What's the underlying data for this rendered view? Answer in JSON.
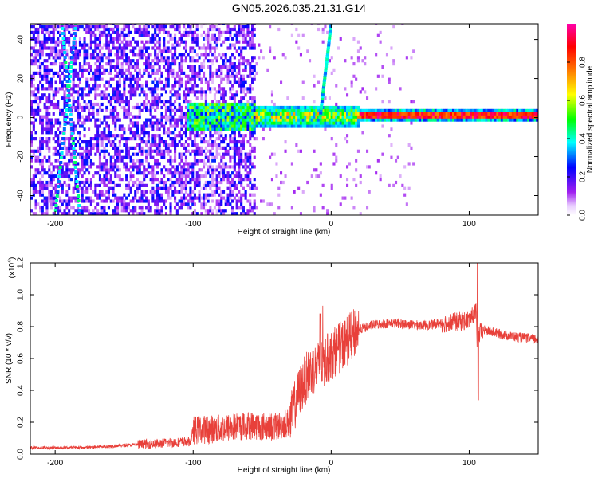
{
  "title": "GN05.2026.035.21.31.G14",
  "chart_data": [
    {
      "type": "heatmap",
      "xlabel": "Height of straight line (km)",
      "ylabel": "Frequency (Hz)",
      "xlim": [
        -218,
        150
      ],
      "ylim": [
        -50,
        48
      ],
      "x_ticks": [
        -200,
        -100,
        0,
        100
      ],
      "x_tick_labels": [
        "-200",
        "-100",
        "0",
        "100"
      ],
      "y_ticks": [
        -40,
        -20,
        0,
        20,
        40
      ],
      "y_tick_labels": [
        "-40",
        "-20",
        "0",
        "20",
        "40"
      ],
      "colorbar": {
        "label": "Normalized spectral amplitude",
        "range": [
          0,
          1
        ],
        "ticks": [
          0.0,
          0.2,
          0.4,
          0.6,
          0.8
        ],
        "tick_labels": [
          "0.0",
          "0.2",
          "0.4",
          "0.6",
          "0.8"
        ],
        "colors": [
          "#ffffff",
          "#a020f0",
          "#0000ff",
          "#00ffff",
          "#00ff00",
          "#ffff00",
          "#ff8000",
          "#ff0000",
          "#ff00ff"
        ]
      },
      "features": [
        {
          "name": "broadband noise region",
          "x_range": [
            -218,
            -55
          ],
          "level": 0.12
        },
        {
          "name": "signal band",
          "x_range": [
            -105,
            150
          ],
          "frequency_hz": 0,
          "level": 0.9
        },
        {
          "name": "streak",
          "from": [
            -200,
            -50
          ],
          "to": [
            -185,
            48
          ]
        },
        {
          "name": "streak",
          "from": [
            -195,
            48
          ],
          "to": [
            -182,
            -50
          ]
        },
        {
          "name": "streak",
          "from": [
            -8,
            0
          ],
          "to": [
            0,
            48
          ]
        }
      ],
      "grid": false
    },
    {
      "type": "line",
      "xlabel": "Height of straight line (km)",
      "ylabel": "SNR (10 * v/v)",
      "y_multiplier_label": "(x10",
      "y_multiplier_exp": "4",
      "y_multiplier_close": ")",
      "xlim": [
        -218,
        150
      ],
      "ylim": [
        0.0,
        1.2
      ],
      "x_ticks": [
        -200,
        -100,
        0,
        100
      ],
      "x_tick_labels": [
        "-200",
        "-100",
        "0",
        "100"
      ],
      "y_ticks": [
        0.0,
        0.2,
        0.4,
        0.6,
        0.8,
        1.0,
        1.2
      ],
      "y_tick_labels": [
        "0.0",
        "0.2",
        "0.4",
        "0.6",
        "0.8",
        "1.0",
        "1.2"
      ],
      "color": "#e8403a",
      "series": [
        {
          "x": [
            -218,
            -200,
            -180,
            -160,
            -140,
            -120,
            -102,
            -100,
            -80,
            -60,
            -40,
            -30,
            -25,
            -20,
            -15,
            -10,
            -5,
            0,
            10,
            20,
            30,
            40,
            50,
            60,
            70,
            80,
            90,
            100,
            105,
            106,
            107,
            110,
            120,
            130,
            140,
            150
          ],
          "values": [
            0.04,
            0.04,
            0.04,
            0.05,
            0.06,
            0.07,
            0.08,
            0.15,
            0.16,
            0.18,
            0.17,
            0.2,
            0.35,
            0.45,
            0.52,
            0.55,
            0.58,
            0.62,
            0.7,
            0.78,
            0.81,
            0.82,
            0.82,
            0.81,
            0.81,
            0.82,
            0.83,
            0.84,
            0.9,
            0.55,
            0.75,
            0.78,
            0.76,
            0.74,
            0.73,
            0.72
          ]
        }
      ],
      "grid": false
    }
  ]
}
